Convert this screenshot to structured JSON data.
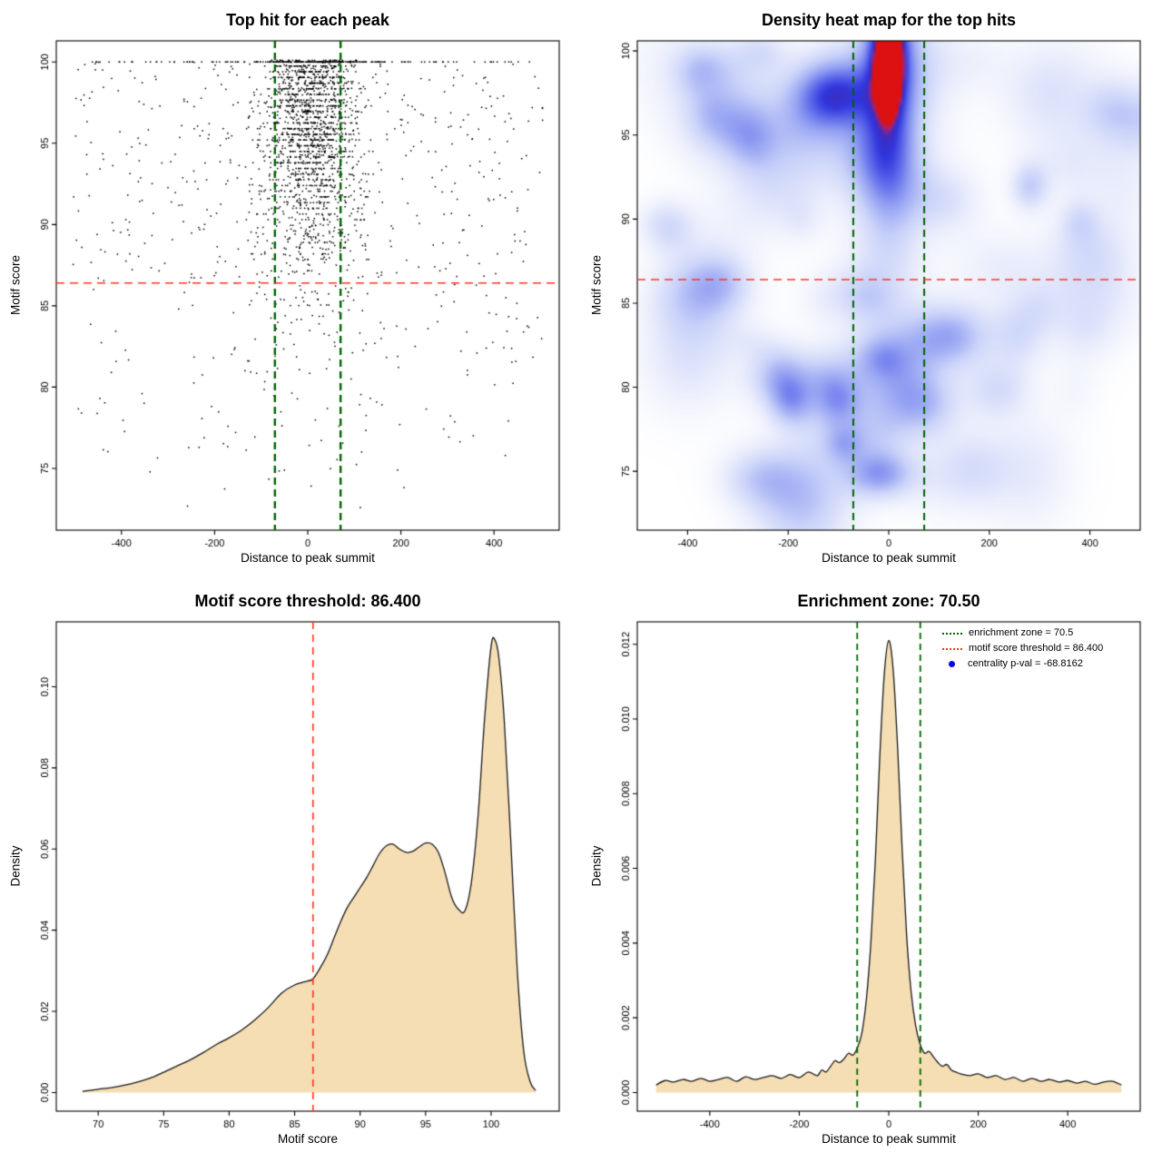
{
  "page": {
    "background": "#ffffff",
    "text_color": "#000000"
  },
  "chart_data": [
    {
      "id": "top-hit-scatter",
      "type": "scatter",
      "title": "Top hit for each peak",
      "xlabel": "Distance to peak summit",
      "ylabel": "Motif score",
      "xlim": [
        -540,
        540
      ],
      "ylim": [
        71.2,
        101.3
      ],
      "xticks": {
        "values": [
          -400,
          -200,
          0,
          200,
          400
        ],
        "labels": [
          "-400",
          "-200",
          "0",
          "200",
          "400"
        ]
      },
      "yticks": {
        "values": [
          75,
          80,
          85,
          90,
          95,
          100
        ],
        "labels": [
          "75",
          "80",
          "85",
          "90",
          "95",
          "100"
        ]
      },
      "grid": false,
      "point_color": "#000000",
      "motif_score_threshold": 86.4,
      "enrichment_zone": [
        -70.5,
        70.5
      ],
      "threshold_color": "#ff3322",
      "zone_color": "#006400",
      "synthesis": {
        "seed": 1234,
        "cluster_n": 1750,
        "cluster_x_center": 8,
        "cluster_x_sigma": 46,
        "cluster_sigma_widen": 1.25,
        "snap_step": 0.35,
        "background_n": 560,
        "topline_center_n": 200,
        "topline_center_sigma": 75,
        "topline_uniform_n": 85,
        "x_range": 505
      }
    },
    {
      "id": "density-heatmap",
      "type": "heatmap",
      "title": "Density heat map for the top hits",
      "xlabel": "Distance to peak summit",
      "ylabel": "Motif score",
      "xlim": [
        -500,
        500
      ],
      "ylim": [
        71.5,
        100.6
      ],
      "xticks": {
        "values": [
          -400,
          -200,
          0,
          200,
          400
        ],
        "labels": [
          "-400",
          "-200",
          "0",
          "200",
          "400"
        ]
      },
      "yticks": {
        "values": [
          75,
          80,
          85,
          90,
          95,
          100
        ],
        "labels": [
          "75",
          "80",
          "85",
          "90",
          "95",
          "100"
        ]
      },
      "motif_score_threshold": 86.4,
      "enrichment_zone": [
        -70.5,
        70.5
      ],
      "threshold_color": "#ff3322",
      "zone_color": "#006400",
      "heat": {
        "blob": {
          "x": 0,
          "top": 100.3,
          "profile_scale": 9,
          "profile_power": 1.2,
          "sigma_x": 30,
          "sigma_widen": 1.2,
          "amp": 0.8,
          "halo": 0.18,
          "halo_mult": 2.3
        },
        "hotspot": {
          "x": 0,
          "y": 99.2,
          "sigma_x": 14,
          "sigma_y": 1.6,
          "amp": 1.3
        },
        "smudges": {
          "count": 70,
          "seed": 97,
          "amp_base": 0.05,
          "amp_var": 0.22
        }
      },
      "colormap": [
        [
          0,
          "#ffffff"
        ],
        [
          0.1,
          "#edf0fc"
        ],
        [
          0.28,
          "#c9d2f9"
        ],
        [
          0.48,
          "#93a0f2"
        ],
        [
          0.66,
          "#5a66ea"
        ],
        [
          0.8,
          "#3136dc"
        ],
        [
          0.88,
          "#3d2cc0"
        ],
        [
          0.94,
          "#a02478"
        ],
        [
          1,
          "#dd1111"
        ]
      ]
    },
    {
      "id": "motif-score-density",
      "type": "area",
      "title": "Motif score threshold: 86.400",
      "xlabel": "Motif score",
      "ylabel": "Density",
      "xlim": [
        66.8,
        105.2
      ],
      "ylim": [
        -0.0046,
        0.116
      ],
      "xticks": {
        "values": [
          70,
          75,
          80,
          85,
          90,
          95,
          100
        ],
        "labels": [
          "70",
          "75",
          "80",
          "85",
          "90",
          "95",
          "100"
        ]
      },
      "yticks": {
        "values": [
          0,
          0.02,
          0.04,
          0.06,
          0.08,
          0.1
        ],
        "labels": [
          "0.00",
          "0.02",
          "0.04",
          "0.06",
          "0.08",
          "0.10"
        ]
      },
      "fill_color": "#f5deb3",
      "line_color": "#1a1a1a",
      "threshold": {
        "value": 86.4,
        "color": "#ff3322"
      },
      "curve": {
        "x": [
          68.8,
          70,
          71,
          72,
          73,
          74,
          75,
          76,
          77,
          78,
          79,
          80,
          81,
          82,
          83,
          84,
          85,
          86,
          86.4,
          87,
          87.5,
          88,
          88.5,
          89,
          89.5,
          90,
          90.5,
          91,
          91.5,
          92,
          92.5,
          93,
          93.5,
          94,
          94.5,
          95,
          95.5,
          96,
          96.5,
          97,
          97.5,
          98,
          98.5,
          99,
          99.5,
          100,
          100.3,
          100.6,
          101,
          101.5,
          102,
          102.5,
          103,
          103.4
        ],
        "y": [
          0.0003,
          0.0008,
          0.0012,
          0.0018,
          0.0026,
          0.0036,
          0.005,
          0.0065,
          0.008,
          0.0098,
          0.0118,
          0.0135,
          0.0155,
          0.018,
          0.021,
          0.0245,
          0.0265,
          0.0275,
          0.028,
          0.031,
          0.034,
          0.038,
          0.042,
          0.0455,
          0.048,
          0.0505,
          0.053,
          0.056,
          0.059,
          0.0608,
          0.0612,
          0.06,
          0.0592,
          0.0594,
          0.0605,
          0.0615,
          0.0612,
          0.059,
          0.054,
          0.048,
          0.0452,
          0.0448,
          0.052,
          0.068,
          0.092,
          0.11,
          0.1115,
          0.107,
          0.092,
          0.062,
          0.03,
          0.01,
          0.0025,
          0.0005
        ]
      }
    },
    {
      "id": "distance-density",
      "type": "area",
      "title": "Enrichment zone: 70.50",
      "xlabel": "Distance to peak summit",
      "ylabel": "Density",
      "xlim": [
        -562,
        562
      ],
      "ylim": [
        -0.0005,
        0.0126
      ],
      "xticks": {
        "values": [
          -400,
          -200,
          0,
          200,
          400
        ],
        "labels": [
          "-400",
          "-200",
          "0",
          "200",
          "400"
        ]
      },
      "yticks": {
        "values": [
          0,
          0.002,
          0.004,
          0.006,
          0.008,
          0.01,
          0.012
        ],
        "labels": [
          "0.000",
          "0.002",
          "0.004",
          "0.006",
          "0.008",
          "0.010",
          "0.012"
        ]
      },
      "fill_color": "#f5deb3",
      "line_color": "#1a1a1a",
      "zone": {
        "values": [
          -70.5,
          70.5
        ],
        "color": "#006400"
      },
      "legend": [
        {
          "symbol": "dotted-line",
          "color": "#006400",
          "label": "enrichment zone = 70.5"
        },
        {
          "symbol": "dotted-line",
          "color": "#ff3322",
          "label": "motif score threshold = 86.400"
        },
        {
          "symbol": "dot",
          "color": "#0000e6",
          "label": "centrality p-val = -68.8162"
        }
      ],
      "curve": {
        "x": [
          -520,
          -500,
          -480,
          -460,
          -440,
          -420,
          -400,
          -380,
          -360,
          -340,
          -320,
          -300,
          -280,
          -260,
          -240,
          -220,
          -200,
          -180,
          -160,
          -150,
          -140,
          -130,
          -120,
          -110,
          -100,
          -90,
          -80,
          -70,
          -60,
          -50,
          -40,
          -30,
          -20,
          -10,
          0,
          10,
          20,
          30,
          40,
          50,
          60,
          70,
          80,
          90,
          100,
          110,
          120,
          130,
          140,
          150,
          160,
          180,
          200,
          220,
          240,
          260,
          280,
          300,
          320,
          340,
          360,
          380,
          400,
          420,
          440,
          460,
          480,
          500,
          520
        ],
        "y": [
          0.0002,
          0.00032,
          0.00028,
          0.00035,
          0.0003,
          0.00038,
          0.0003,
          0.00035,
          0.0004,
          0.0003,
          0.00042,
          0.00035,
          0.0004,
          0.00045,
          0.00038,
          0.00048,
          0.0004,
          0.00055,
          0.00045,
          0.0006,
          0.00055,
          0.0007,
          0.00085,
          0.0008,
          0.0009,
          0.00105,
          0.001,
          0.0012,
          0.0016,
          0.0025,
          0.004,
          0.0062,
          0.009,
          0.0112,
          0.0121,
          0.0113,
          0.0092,
          0.0065,
          0.0042,
          0.0027,
          0.0018,
          0.0013,
          0.00105,
          0.0011,
          0.00095,
          0.0008,
          0.0007,
          0.00075,
          0.0006,
          0.00055,
          0.0005,
          0.00045,
          0.0005,
          0.0004,
          0.00045,
          0.00035,
          0.0004,
          0.0003,
          0.00038,
          0.0003,
          0.00035,
          0.00028,
          0.00032,
          0.00025,
          0.0003,
          0.00022,
          0.00028,
          0.0003,
          0.0002
        ]
      }
    }
  ]
}
